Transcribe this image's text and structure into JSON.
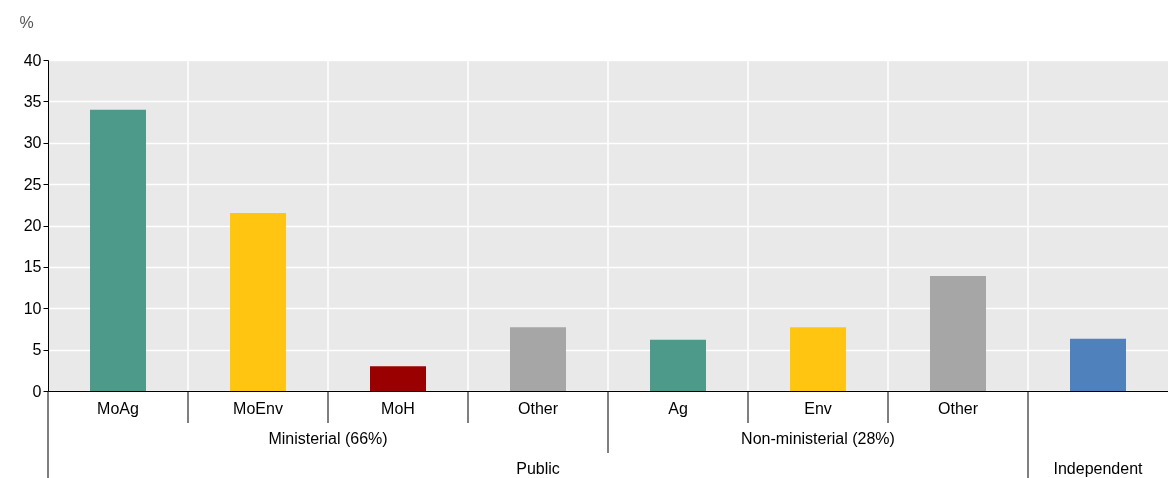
{
  "chart_data": {
    "type": "bar",
    "ylabel": "%",
    "categories": [
      "MoAg",
      "MoEnv",
      "MoH",
      "Other",
      "Ag",
      "Env",
      "Other",
      null
    ],
    "values": [
      34,
      21.5,
      3,
      7.7,
      6.2,
      7.7,
      13.9,
      6.3
    ],
    "colors": [
      "#4d9a8a",
      "#ffc511",
      "#9b0000",
      "#a6a6a6",
      "#4d9a8a",
      "#ffc511",
      "#a6a6a6",
      "#4f81bd"
    ],
    "ylim": [
      0,
      40
    ],
    "yticks": [
      0,
      5,
      10,
      15,
      20,
      25,
      30,
      35,
      40
    ],
    "grid": true,
    "annotations": [
      "Ministerial (66%)",
      "Non-ministerial (28%)",
      "Public",
      "Independent"
    ]
  }
}
